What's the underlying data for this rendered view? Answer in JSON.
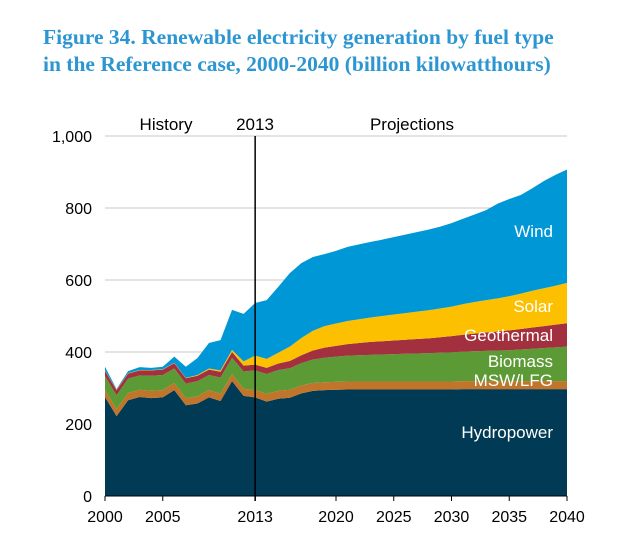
{
  "chart_data": {
    "type": "area",
    "stacked": true,
    "title": "Figure 34. Renewable electricity generation by fuel type in the Reference case, 2000-2040 (billion kilowatthours)",
    "xlabel": "",
    "ylabel": "",
    "xlim": [
      2000,
      2040
    ],
    "ylim": [
      0,
      1000
    ],
    "grid": true,
    "x_ticks": [
      "2000",
      "2005",
      "2013",
      "2020",
      "2025",
      "2030",
      "2035",
      "2040"
    ],
    "y_ticks": [
      "0",
      "200",
      "400",
      "600",
      "800",
      "1,000"
    ],
    "annotations": {
      "history": "History",
      "divider_year": "2013",
      "projections": "Projections"
    },
    "divider_x": 2013,
    "x": [
      2000,
      2001,
      2002,
      2003,
      2004,
      2005,
      2006,
      2007,
      2008,
      2009,
      2010,
      2011,
      2012,
      2013,
      2014,
      2015,
      2016,
      2017,
      2018,
      2019,
      2020,
      2021,
      2022,
      2023,
      2024,
      2025,
      2026,
      2027,
      2028,
      2029,
      2030,
      2031,
      2032,
      2033,
      2034,
      2035,
      2036,
      2037,
      2038,
      2039,
      2040
    ],
    "series": [
      {
        "name": "Hydropower",
        "color": "#003a55",
        "values": [
          275,
          222,
          266,
          275,
          272,
          274,
          294,
          252,
          257,
          274,
          264,
          319,
          278,
          274,
          262,
          270,
          273,
          285,
          292,
          294,
          295,
          296,
          296,
          296,
          296,
          296,
          296,
          296,
          296,
          296,
          296,
          297,
          297,
          297,
          297,
          297,
          297,
          297,
          297,
          297,
          297
        ]
      },
      {
        "name": "MSW/LFG",
        "color": "#c0752b",
        "values": [
          20,
          20,
          20,
          20,
          20,
          20,
          20,
          20,
          20,
          20,
          20,
          20,
          20,
          20,
          22,
          22,
          22,
          22,
          22,
          22,
          22,
          22,
          22,
          22,
          22,
          22,
          22,
          22,
          22,
          22,
          22,
          22,
          22,
          22,
          22,
          22,
          22,
          22,
          22,
          22,
          22
        ]
      },
      {
        "name": "Biomass",
        "color": "#5c9a35",
        "values": [
          38,
          38,
          40,
          40,
          42,
          42,
          40,
          40,
          42,
          42,
          45,
          45,
          48,
          55,
          55,
          58,
          60,
          62,
          65,
          68,
          70,
          72,
          73,
          74,
          75,
          76,
          77,
          78,
          79,
          80,
          81,
          82,
          83,
          84,
          85,
          86,
          88,
          90,
          92,
          94,
          96
        ]
      },
      {
        "name": "Geothermal",
        "color": "#a3303f",
        "values": [
          15,
          14,
          14,
          14,
          15,
          15,
          15,
          15,
          15,
          15,
          16,
          16,
          16,
          16,
          17,
          18,
          20,
          22,
          25,
          28,
          30,
          32,
          34,
          36,
          37,
          38,
          39,
          40,
          41,
          43,
          45,
          47,
          49,
          51,
          53,
          55,
          57,
          59,
          61,
          63,
          65
        ]
      },
      {
        "name": "Solar",
        "color": "#fcc000",
        "values": [
          1,
          1,
          1,
          1,
          1,
          1,
          1,
          1,
          2,
          3,
          4,
          6,
          12,
          25,
          25,
          30,
          40,
          48,
          55,
          60,
          62,
          64,
          66,
          68,
          70,
          72,
          74,
          76,
          78,
          80,
          82,
          85,
          88,
          90,
          92,
          95,
          98,
          102,
          105,
          108,
          112
        ]
      },
      {
        "name": "Wind",
        "color": "#0097d6",
        "values": [
          10,
          2,
          6,
          8,
          6,
          7,
          17,
          31,
          47,
          71,
          84,
          111,
          132,
          146,
          163,
          183,
          204,
          208,
          205,
          200,
          202,
          206,
          208,
          210,
          212,
          215,
          218,
          221,
          224,
          227,
          232,
          237,
          243,
          250,
          263,
          270,
          274,
          285,
          298,
          308,
          315
        ]
      }
    ]
  }
}
